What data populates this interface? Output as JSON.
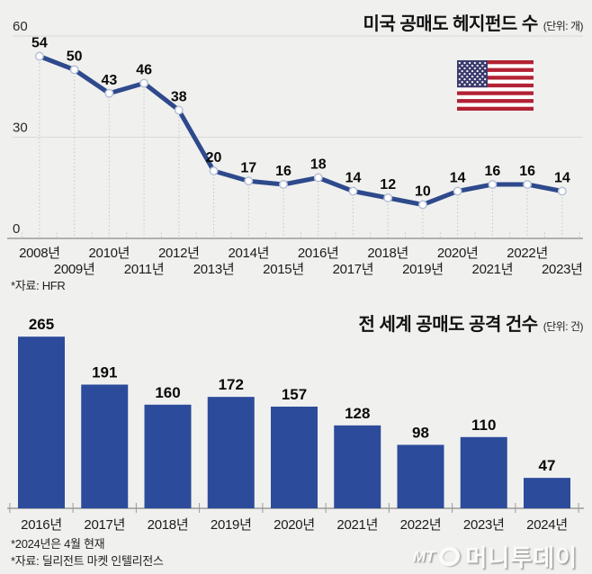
{
  "colors": {
    "background": "#f0f0ee",
    "line": "#2e4a8c",
    "bar": "#2c4b9b",
    "marker_fill": "#ffffff",
    "marker_stroke": "#b5c0d6",
    "grid": "#d9d9d7",
    "dotted_grid": "#c6c6c4",
    "axis": "#9a9a98",
    "label_text": "#1b1b1b",
    "value_text": "#0a0a0a",
    "flag_red": "#B22234",
    "flag_blue": "#3C3B6E",
    "flag_white": "#ffffff"
  },
  "chart_data": [
    {
      "type": "line",
      "title": "미국 공매도 헤지펀드 수",
      "unit_label": "(단위: 개)",
      "source": "*자료: HFR",
      "categories": [
        "2008년",
        "2009년",
        "2010년",
        "2011년",
        "2012년",
        "2013년",
        "2014년",
        "2015년",
        "2016년",
        "2017년",
        "2018년",
        "2019년",
        "2020년",
        "2021년",
        "2022년",
        "2023년"
      ],
      "values": [
        54,
        50,
        43,
        46,
        38,
        20,
        17,
        16,
        18,
        14,
        12,
        10,
        14,
        16,
        16,
        14
      ],
      "ylim": [
        0,
        60
      ],
      "yticks": [
        0,
        30,
        60
      ],
      "grid": "horizontal + dotted vertical per point",
      "legend": "none",
      "annotation": "us-flag"
    },
    {
      "type": "bar",
      "title": "전 세계 공매도 공격 건수",
      "unit_label": "(단위: 건)",
      "categories": [
        "2016년",
        "2017년",
        "2018년",
        "2019년",
        "2020년",
        "2021년",
        "2022년",
        "2023년",
        "2024년"
      ],
      "values": [
        265,
        191,
        160,
        172,
        157,
        128,
        98,
        110,
        47
      ],
      "ylim": [
        0,
        280
      ],
      "grid": "off",
      "legend": "none",
      "notes": [
        "*2024년은 4월 현재",
        "*자료: 딜리전트 마켓 인텔리전스"
      ]
    }
  ],
  "footer": {
    "logo_mt": "MT",
    "logo_name": "머니투데이"
  }
}
